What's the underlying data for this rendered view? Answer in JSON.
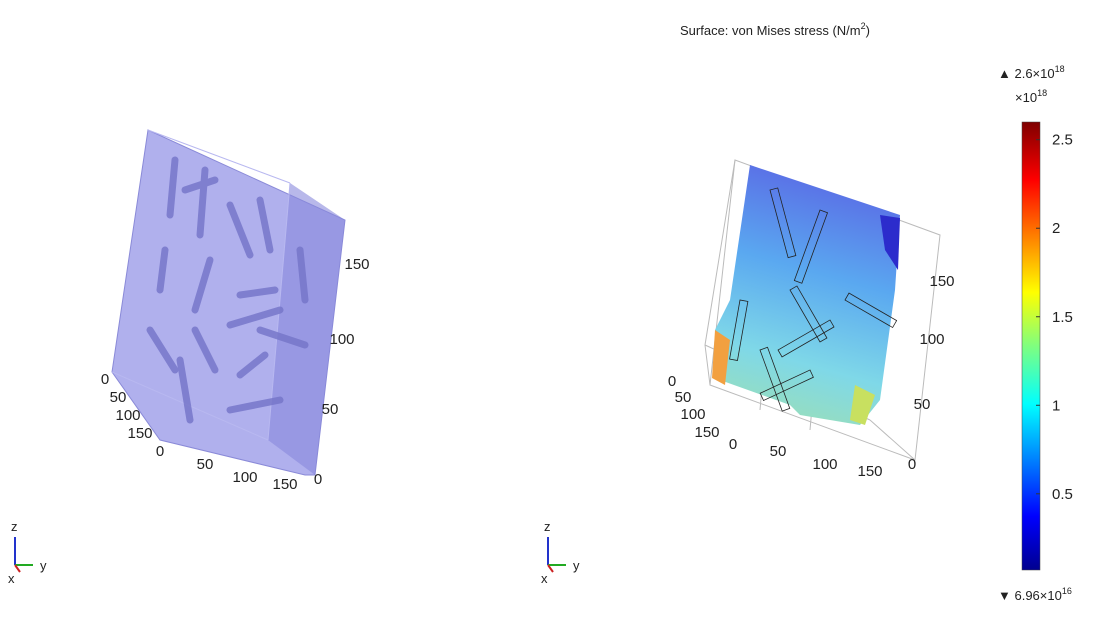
{
  "left_view": {
    "x_axis_labels": [
      0,
      50,
      100,
      150
    ],
    "y_axis_labels": [
      0,
      50,
      100,
      150
    ],
    "z_axis_labels": [
      0,
      50,
      100,
      150
    ],
    "triad": [
      "z",
      "x",
      "y"
    ]
  },
  "right_view": {
    "title": {
      "text": "Surface: von Mises stress (N/m",
      "sup": "2",
      "end": ")"
    },
    "x_axis_labels": [
      0,
      50,
      100,
      150
    ],
    "y_axis_labels": [
      0,
      50,
      100,
      150
    ],
    "z_axis_labels": [
      0,
      50,
      100,
      150
    ],
    "triad": [
      "z",
      "x",
      "y"
    ]
  },
  "colorbar": {
    "max_label": {
      "text": "▲ 2.6×10",
      "sup": "18"
    },
    "multiplier": {
      "text": "×10",
      "sup": "18"
    },
    "min_label": {
      "text": "▼ 6.96×10",
      "sup": "16"
    },
    "range": [
      0.0696,
      2.6
    ],
    "ticks": [
      0.5,
      1,
      1.5,
      2,
      2.5
    ]
  }
}
